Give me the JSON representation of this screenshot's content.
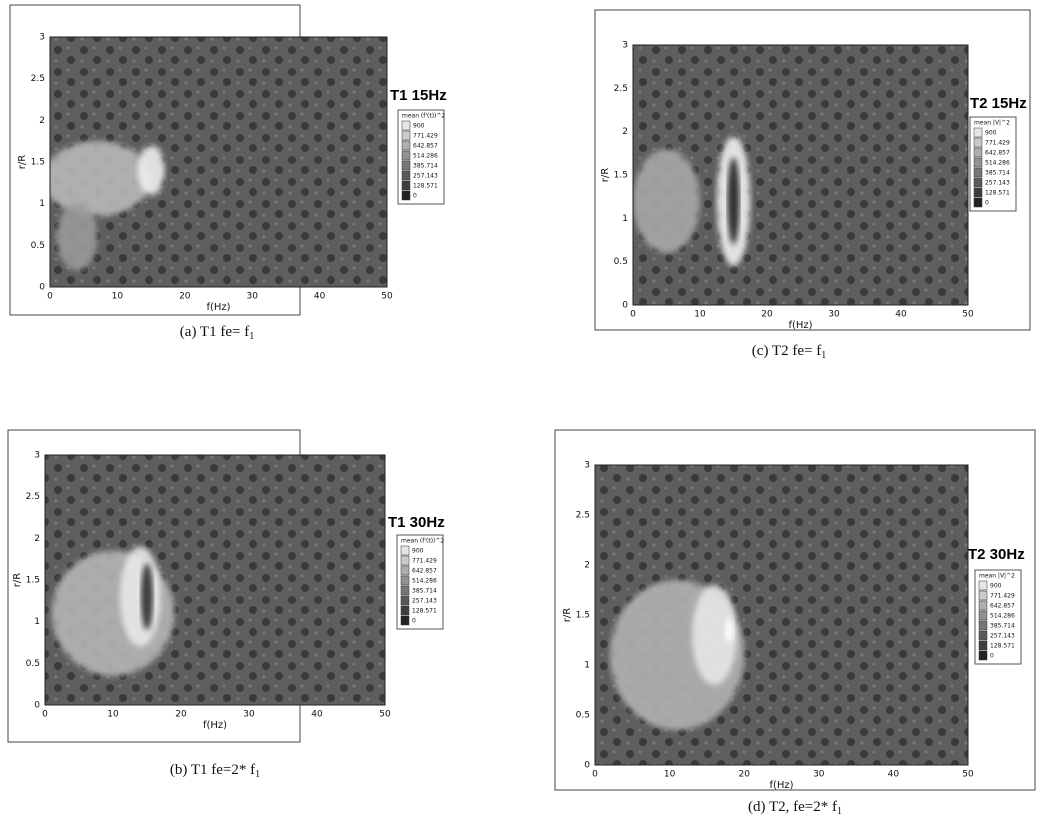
{
  "panels": [
    {
      "title": "T1 15Hz",
      "legend_title": "mean (f'(t))^2",
      "legend_levels": [
        "900",
        "771.429",
        "642.857",
        "514.286",
        "385.714",
        "257.143",
        "128.571",
        "0"
      ],
      "x_label": "f(Hz)",
      "y_label": "r/R",
      "xticks": [
        "0",
        "10",
        "20",
        "30",
        "40",
        "50"
      ],
      "yticks": [
        "0",
        "0.5",
        "1",
        "1.5",
        "2",
        "2.5",
        "3"
      ],
      "caption": {
        "text": "(a) T1 fe= f",
        "sub": "1"
      }
    },
    {
      "title": "T1 30Hz",
      "legend_title": "mean (f'(t))^2",
      "legend_levels": [
        "900",
        "771.429",
        "642.857",
        "514.286",
        "385.714",
        "257.143",
        "128.571",
        "0"
      ],
      "x_label": "f(Hz)",
      "y_label": "r/R",
      "xticks": [
        "0",
        "10",
        "20",
        "30",
        "40",
        "50"
      ],
      "yticks": [
        "0",
        "0.5",
        "1",
        "1.5",
        "2",
        "2.5",
        "3"
      ],
      "caption": {
        "text": "(b) T1 fe=2* f",
        "sub": "1"
      }
    },
    {
      "title": "T2 15Hz",
      "legend_title": "mean |V|^2",
      "legend_levels": [
        "900",
        "771.429",
        "642.857",
        "514.286",
        "385.714",
        "257.143",
        "128.571",
        "0"
      ],
      "x_label": "f(Hz)",
      "y_label": "r/R",
      "xticks": [
        "0",
        "10",
        "20",
        "30",
        "40",
        "50"
      ],
      "yticks": [
        "0",
        "0.5",
        "1",
        "1.5",
        "2",
        "2.5",
        "3"
      ],
      "caption": {
        "text": "(c) T2 fe= f",
        "sub": "1"
      }
    },
    {
      "title": "T2 30Hz",
      "legend_title": "mean |V|^2",
      "legend_levels": [
        "900",
        "771.429",
        "642.857",
        "514.286",
        "385.714",
        "257.143",
        "128.571",
        "0"
      ],
      "x_label": "f(Hz)",
      "y_label": "r/R",
      "xticks": [
        "0",
        "10",
        "20",
        "30",
        "40",
        "50"
      ],
      "yticks": [
        "0",
        "0.5",
        "1",
        "1.5",
        "2",
        "2.5",
        "3"
      ],
      "caption": {
        "text": "(d) T2, fe=2* f",
        "sub": "1"
      }
    }
  ]
}
